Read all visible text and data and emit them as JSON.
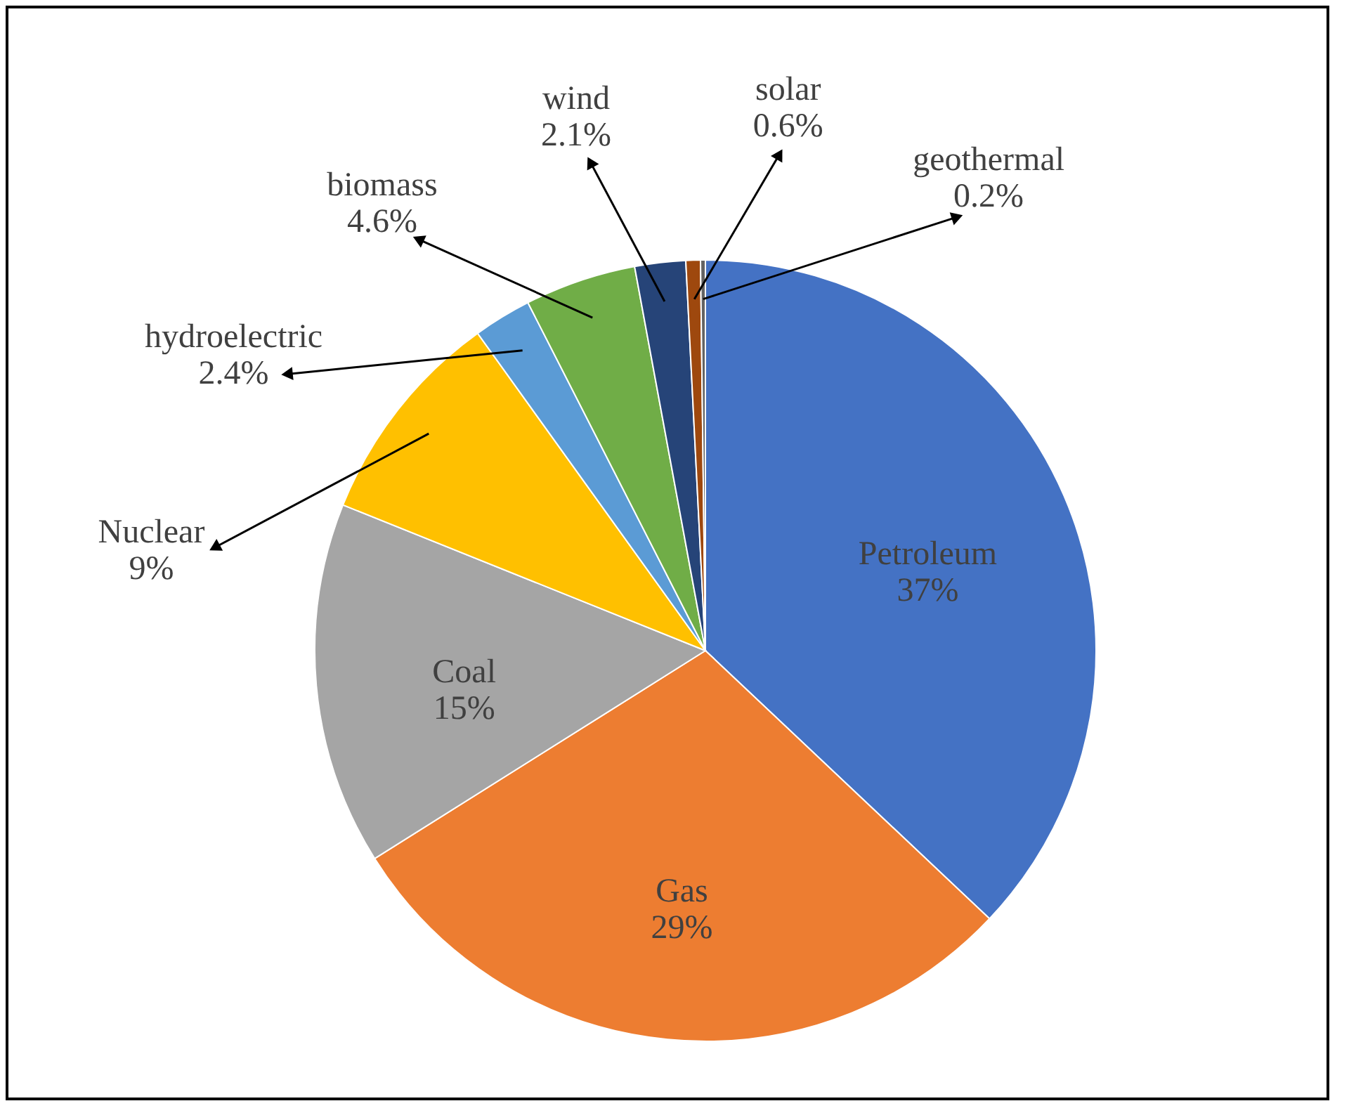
{
  "chart_data": {
    "type": "pie",
    "categories": [
      "Petroleum",
      "Gas",
      "Coal",
      "Nuclear",
      "hydroelectric",
      "biomass",
      "wind",
      "solar",
      "geothermal"
    ],
    "values": [
      37,
      29,
      15,
      9,
      2.4,
      4.6,
      2.1,
      0.6,
      0.2
    ],
    "value_labels": [
      "37%",
      "29%",
      "15%",
      "9%",
      "2.4%",
      "4.6%",
      "2.1%",
      "0.6%",
      "0.2%"
    ],
    "colors": [
      "#4472c4",
      "#ed7d31",
      "#a5a5a5",
      "#ffc000",
      "#5b9bd5",
      "#70ad47",
      "#264478",
      "#9e480e",
      "#636363"
    ]
  }
}
